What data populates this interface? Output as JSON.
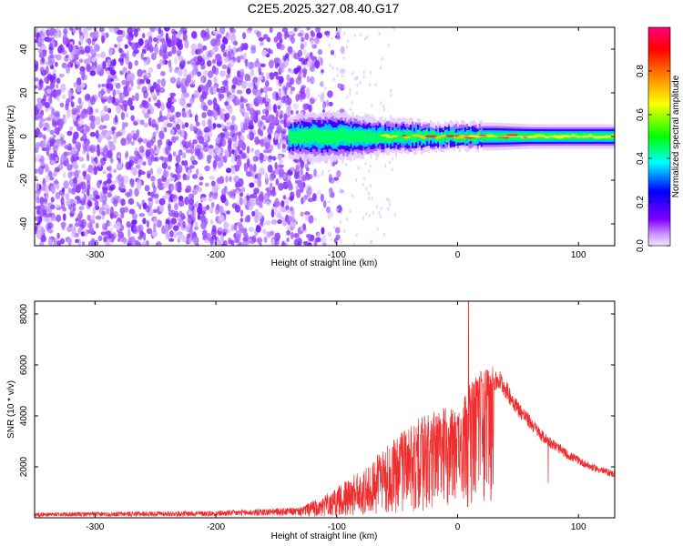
{
  "title": "C2E5.2025.327.08.40.G17",
  "chart_data": [
    {
      "type": "heatmap",
      "xlabel": "Height of straight line (km)",
      "ylabel": "Frequency (Hz)",
      "xlim": [
        -350,
        130
      ],
      "ylim": [
        -50,
        50
      ],
      "xticks": [
        -300,
        -200,
        -100,
        0,
        100
      ],
      "xtick_labels": [
        "-300",
        "-200",
        "-100",
        "0",
        "100"
      ],
      "yticks": [
        -40,
        -20,
        0,
        20,
        40
      ],
      "ytick_labels": [
        "-40",
        "-20",
        "0",
        "20",
        "40"
      ],
      "noise_region_x": [
        -350,
        -120
      ],
      "signal_band": {
        "x_start": -140,
        "x_end": 130,
        "center_freq": 0,
        "points": [
          {
            "x": -140,
            "width": 6,
            "amp": 0.45
          },
          {
            "x": -120,
            "width": 7,
            "amp": 0.5
          },
          {
            "x": -100,
            "width": 7,
            "amp": 0.55
          },
          {
            "x": -80,
            "width": 6,
            "amp": 0.65
          },
          {
            "x": -60,
            "width": 5,
            "amp": 0.8
          },
          {
            "x": -40,
            "width": 5,
            "amp": 0.9
          },
          {
            "x": -20,
            "width": 4,
            "amp": 0.95
          },
          {
            "x": 0,
            "width": 4,
            "amp": 1.0
          },
          {
            "x": 30,
            "width": 4,
            "amp": 0.95
          },
          {
            "x": 60,
            "width": 3.5,
            "amp": 0.85
          },
          {
            "x": 100,
            "width": 3.5,
            "amp": 0.75
          },
          {
            "x": 130,
            "width": 3.5,
            "amp": 0.7
          }
        ]
      },
      "colorbar": {
        "label": "Normalized spectral amplitude",
        "range": [
          0,
          1
        ],
        "ticks": [
          0.0,
          0.2,
          0.4,
          0.6,
          0.8
        ],
        "tick_labels": [
          "0.0",
          "0.2",
          "0.4",
          "0.6",
          "0.8"
        ],
        "colors": [
          "#f3e6ff",
          "#cc99ff",
          "#8000ff",
          "#0000ff",
          "#00ffff",
          "#00ff00",
          "#ffff00",
          "#ff8000",
          "#ff0000",
          "#ff0080"
        ]
      }
    },
    {
      "type": "line",
      "xlabel": "Height of straight line (km)",
      "ylabel": "SNR (10 * v/v)",
      "xlim": [
        -350,
        130
      ],
      "ylim": [
        0,
        8500
      ],
      "xticks": [
        -300,
        -200,
        -100,
        0,
        100
      ],
      "xtick_labels": [
        "-300",
        "-200",
        "-100",
        "0",
        "100"
      ],
      "yticks": [
        2000,
        4000,
        6000,
        8000
      ],
      "ytick_labels": [
        "2000",
        "4000",
        "6000",
        "8000"
      ],
      "color": "#ee2e2e",
      "envelope_keypoints": {
        "x": [
          -350,
          -200,
          -130,
          -110,
          -90,
          -70,
          -50,
          -30,
          -10,
          0,
          10,
          20,
          30,
          35,
          50,
          70,
          90,
          110,
          130
        ],
        "base": [
          150,
          200,
          300,
          500,
          800,
          1200,
          1800,
          2600,
          3300,
          3500,
          4200,
          5000,
          5300,
          5400,
          4300,
          3200,
          2500,
          2000,
          1700
        ],
        "spike": [
          150,
          200,
          400,
          900,
          1500,
          2300,
          3200,
          3900,
          4300,
          4200,
          5200,
          5800,
          5900,
          5800,
          4500,
          3300,
          2600,
          2100,
          1800
        ]
      },
      "peak": {
        "x": 9,
        "y": 8500
      }
    }
  ]
}
